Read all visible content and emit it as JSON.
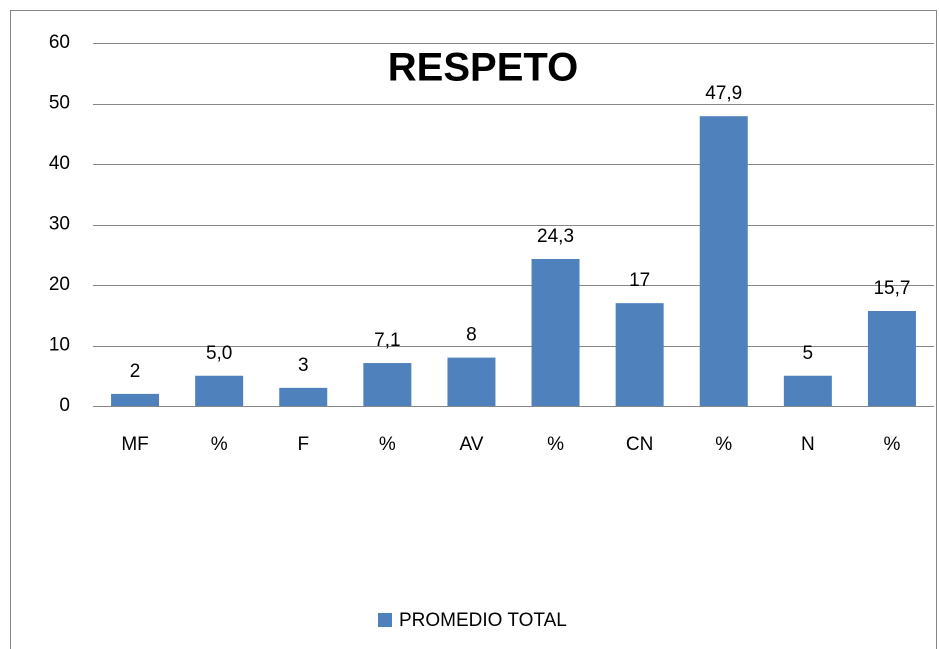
{
  "chart_data": {
    "type": "bar",
    "title": "RESPETO",
    "categories": [
      "MF",
      "%",
      "F",
      "%",
      "AV",
      "%",
      "CN",
      "%",
      "N",
      "%"
    ],
    "series": [
      {
        "name": "PROMEDIO TOTAL",
        "color": "#4f81bd",
        "values": [
          2,
          5.0,
          3,
          7.1,
          8,
          24.3,
          17,
          47.9,
          5,
          15.7
        ],
        "value_labels": [
          "2",
          "5,0",
          "3",
          "7,1",
          "8",
          "24,3",
          "17",
          "47,9",
          "5",
          "15,7"
        ]
      }
    ],
    "ylim": [
      0,
      60
    ],
    "yticks": [
      0,
      10,
      20,
      30,
      40,
      50,
      60
    ],
    "grid": true,
    "legend": "bottom"
  }
}
